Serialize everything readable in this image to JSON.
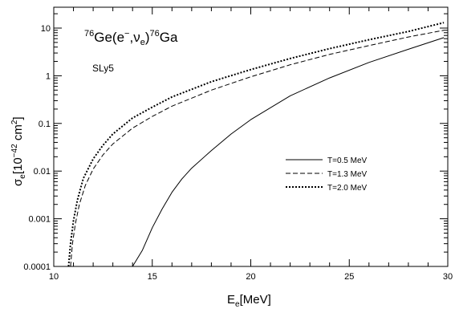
{
  "chart_data": {
    "type": "line",
    "title": "",
    "annotation_reaction": {
      "mass1": "76",
      "text1": "Ge(e",
      "sup_minus": "−",
      "comma_nu": ",ν",
      "sub_e": "e",
      "paren": ")",
      "mass2": "76",
      "text2": "Ga"
    },
    "annotation_model": "SLy5",
    "xlabel": {
      "main": "E",
      "sub": "e",
      "unit": "[MeV]"
    },
    "ylabel": {
      "main": "σ",
      "sub": "e",
      "unit_open": "[10",
      "exp": "−42",
      "unit_mid": " cm",
      "exp2": "2",
      "unit_close": "]"
    },
    "x_ticks": [
      "10",
      "15",
      "20",
      "25",
      "30"
    ],
    "y_ticks": [
      "0.0001",
      "0.001",
      "0.01",
      "0.1",
      "1",
      "10"
    ],
    "xlim": [
      10,
      30
    ],
    "ylim": [
      0.0001,
      20
    ],
    "y_scale": "log",
    "legend_placement": "right",
    "series": [
      {
        "name": "T=0.5 MeV",
        "style": "solid",
        "x": [
          14.0,
          14.5,
          15.0,
          15.5,
          16.0,
          16.5,
          17.0,
          18.0,
          19.0,
          20.0,
          22.0,
          24.0,
          26.0,
          28.0,
          29.8
        ],
        "y": [
          0.0001,
          0.00022,
          0.00065,
          0.0016,
          0.0036,
          0.0068,
          0.0115,
          0.027,
          0.06,
          0.12,
          0.38,
          0.9,
          1.9,
          3.6,
          6.3
        ]
      },
      {
        "name": "T=1.3 MeV",
        "style": "dashed",
        "x": [
          10.85,
          10.95,
          11.1,
          11.3,
          11.6,
          12.0,
          12.5,
          13.0,
          14.0,
          15.0,
          16.0,
          18.0,
          20.0,
          22.0,
          24.0,
          26.0,
          28.0,
          29.8
        ],
        "y": [
          0.0001,
          0.0003,
          0.0008,
          0.002,
          0.005,
          0.011,
          0.022,
          0.037,
          0.08,
          0.14,
          0.23,
          0.5,
          0.95,
          1.7,
          2.8,
          4.3,
          6.5,
          9.0
        ]
      },
      {
        "name": "T=2.0 MeV",
        "style": "dotted",
        "x": [
          10.75,
          10.85,
          11.0,
          11.2,
          11.5,
          12.0,
          12.5,
          13.0,
          14.0,
          15.0,
          16.0,
          18.0,
          20.0,
          22.0,
          24.0,
          26.0,
          28.0,
          29.8
        ],
        "y": [
          0.0001,
          0.0003,
          0.0009,
          0.0025,
          0.007,
          0.018,
          0.035,
          0.06,
          0.13,
          0.22,
          0.36,
          0.75,
          1.35,
          2.3,
          3.7,
          5.7,
          8.5,
          13.0
        ]
      }
    ]
  }
}
